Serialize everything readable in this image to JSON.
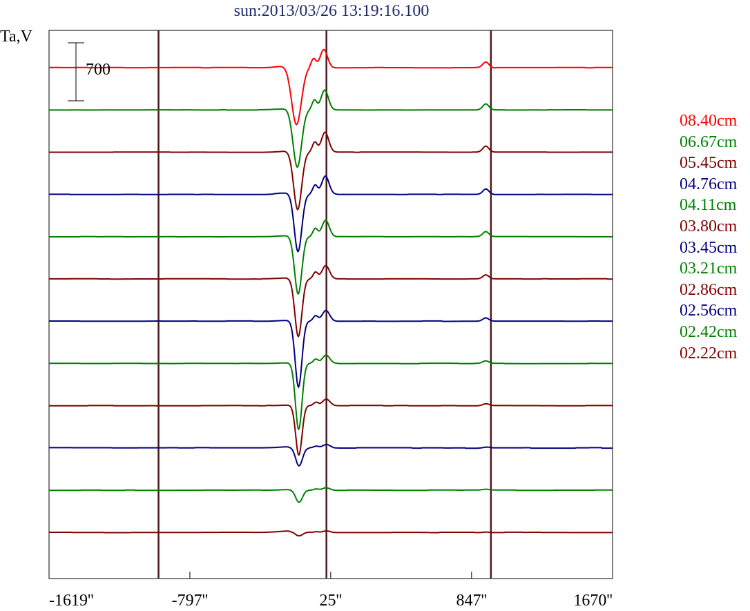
{
  "chart_data": {
    "type": "line",
    "title": "sun:2013/03/26 13:19:16.100",
    "ylabel": "Ta,V",
    "scale_bar_label": "700",
    "xlim": [
      -1619,
      1670
    ],
    "x_ticks": [
      {
        "value": -1619,
        "label": "-1619''"
      },
      {
        "value": -797,
        "label": "-797''"
      },
      {
        "value": 25,
        "label": "25''"
      },
      {
        "value": 847,
        "label": "847''"
      },
      {
        "value": 1670,
        "label": "1670''"
      }
    ],
    "vertical_lines": [
      -980,
      0,
      960
    ],
    "series": [
      {
        "name": "08.40cm",
        "color": "#ff0000",
        "dip_depth": 700,
        "dip_width": 40,
        "bump": 220,
        "left_bump": 0.18,
        "shift": -15,
        "noise": 0.07,
        "seed": 3
      },
      {
        "name": "06.67cm",
        "color": "#008000",
        "dip_depth": 700,
        "dip_width": 35,
        "bump": 240,
        "left_bump": 0.12,
        "shift": -10,
        "noise": 0.05,
        "seed": 7
      },
      {
        "name": "05.45cm",
        "color": "#800000",
        "dip_depth": 700,
        "dip_width": 33,
        "bump": 240,
        "left_bump": 0.1,
        "shift": -8,
        "noise": 0.05,
        "seed": 11
      },
      {
        "name": "04.76cm",
        "color": "#000080",
        "dip_depth": 700,
        "dip_width": 31,
        "bump": 220,
        "left_bump": 0.15,
        "shift": -6,
        "noise": 0.05,
        "seed": 13
      },
      {
        "name": "04.11cm",
        "color": "#008000",
        "dip_depth": 700,
        "dip_width": 30,
        "bump": 200,
        "left_bump": 0.1,
        "shift": -5,
        "noise": 0.05,
        "seed": 17
      },
      {
        "name": "03.80cm",
        "color": "#800000",
        "dip_depth": 700,
        "dip_width": 29,
        "bump": 160,
        "left_bump": 0.08,
        "shift": -4,
        "noise": 0.06,
        "seed": 19
      },
      {
        "name": "03.45cm",
        "color": "#000080",
        "dip_depth": 800,
        "dip_width": 28,
        "bump": 130,
        "left_bump": 0.08,
        "shift": -3,
        "noise": 0.06,
        "seed": 23
      },
      {
        "name": "03.21cm",
        "color": "#008000",
        "dip_depth": 800,
        "dip_width": 27,
        "bump": 100,
        "left_bump": 0.06,
        "shift": -2,
        "noise": 0.06,
        "seed": 29
      },
      {
        "name": "02.86cm",
        "color": "#800000",
        "dip_depth": 600,
        "dip_width": 26,
        "bump": 80,
        "left_bump": 0.06,
        "shift": -1,
        "noise": 0.06,
        "seed": 31
      },
      {
        "name": "02.56cm",
        "color": "#000080",
        "dip_depth": 220,
        "dip_width": 28,
        "bump": 40,
        "left_bump": 0.1,
        "shift": 0,
        "noise": 0.08,
        "seed": 37
      },
      {
        "name": "02.42cm",
        "color": "#008000",
        "dip_depth": 150,
        "dip_width": 28,
        "bump": 30,
        "left_bump": 0.06,
        "shift": 0,
        "noise": 0.06,
        "seed": 41
      },
      {
        "name": "02.22cm",
        "color": "#800000",
        "dip_depth": 50,
        "dip_width": 30,
        "bump": 20,
        "left_bump": 0.12,
        "shift": 0,
        "noise": 0.07,
        "seed": 43
      }
    ]
  }
}
